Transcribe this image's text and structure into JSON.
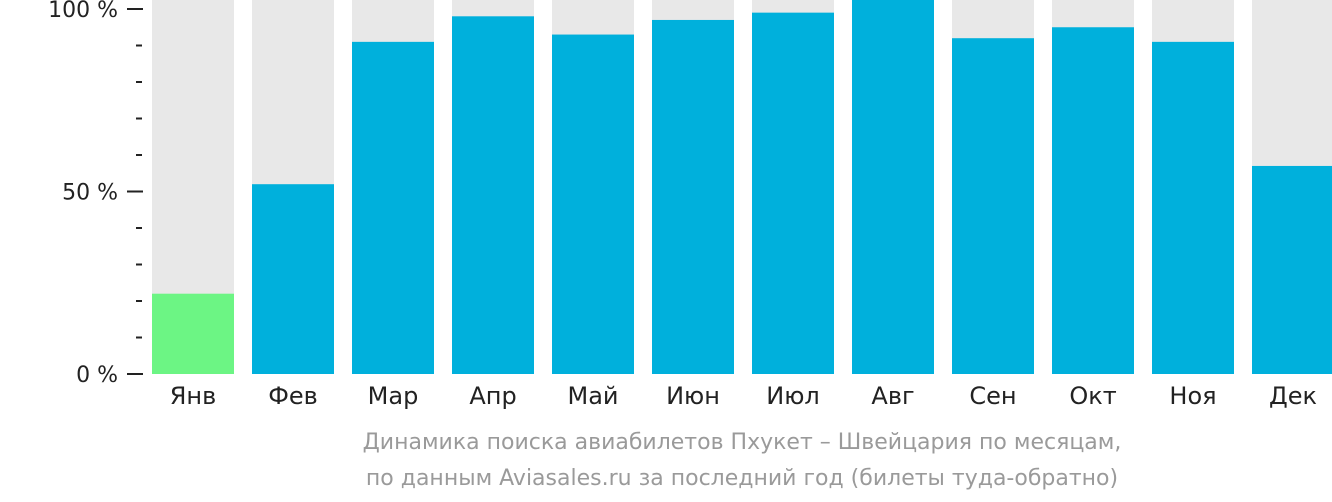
{
  "chart_data": {
    "type": "bar",
    "categories": [
      "Янв",
      "Фев",
      "Мар",
      "Апр",
      "Май",
      "Июн",
      "Июл",
      "Авг",
      "Сен",
      "Окт",
      "Ноя",
      "Дек"
    ],
    "values": [
      22,
      52,
      91,
      98,
      93,
      97,
      99,
      105,
      92,
      95,
      91,
      57
    ],
    "ylim": [
      0,
      100
    ],
    "y_ticks": [
      {
        "value": 0,
        "label": "0 %"
      },
      {
        "value": 50,
        "label": "50 %"
      },
      {
        "value": 100,
        "label": "100 %"
      }
    ],
    "y_minor_step": 10,
    "highlight_index": 0,
    "colors": {
      "bar": "#00b0dc",
      "highlight": "#6cf584",
      "background": "#e8e8e8",
      "axis": "#222222"
    },
    "caption_lines": [
      "Динамика поиска авиабилетов Пхукет – Швейцария по месяцам,",
      "по данным Aviasales.ru за последний год (билеты туда-обратно)"
    ]
  }
}
